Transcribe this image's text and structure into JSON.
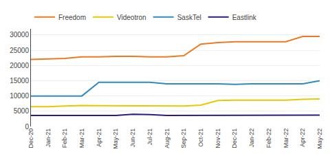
{
  "chart_data": {
    "type": "line",
    "categories": [
      "Dec-20",
      "Jan-21",
      "Feb-21",
      "Mar-21",
      "Apr-21",
      "May-21",
      "Jun-21",
      "Jul-21",
      "Aug-21",
      "Sep-21",
      "Oct-21",
      "Nov-21",
      "Dec-21",
      "Jan-22",
      "Feb-22",
      "Mar-22",
      "Apr-22",
      "May-22"
    ],
    "series": [
      {
        "name": "Freedom",
        "color": "#f07820",
        "values": [
          22000,
          22200,
          22300,
          22800,
          22800,
          23000,
          23000,
          22800,
          22800,
          23200,
          27000,
          27500,
          27800,
          27800,
          27800,
          27800,
          29500,
          29500
        ]
      },
      {
        "name": "Videotron",
        "color": "#e8c800",
        "values": [
          6500,
          6500,
          6700,
          6900,
          6800,
          6800,
          6800,
          6800,
          6700,
          6700,
          7000,
          8500,
          8600,
          8600,
          8600,
          8600,
          8900,
          9000
        ]
      },
      {
        "name": "SaskTel",
        "color": "#2e8bc0",
        "values": [
          10000,
          10000,
          10000,
          10000,
          14500,
          14500,
          14500,
          14500,
          14000,
          14000,
          14000,
          14000,
          13800,
          14000,
          14000,
          14000,
          14000,
          15000
        ]
      },
      {
        "name": "Eastlink",
        "color": "#2e1a87",
        "values": [
          3600,
          3600,
          3600,
          3600,
          3600,
          3600,
          4000,
          3900,
          3600,
          3600,
          3600,
          3600,
          3600,
          3600,
          3600,
          3600,
          3600,
          3700
        ]
      }
    ],
    "ylim": [
      0,
      32000
    ],
    "yticks": [
      0,
      5000,
      10000,
      15000,
      20000,
      25000,
      30000
    ],
    "grid": true,
    "legend": "top"
  }
}
